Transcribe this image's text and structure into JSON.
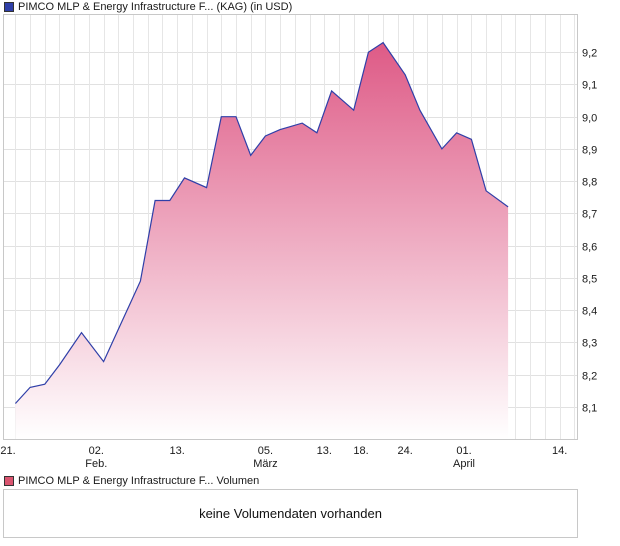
{
  "legend": {
    "price_label": "PIMCO MLP & Energy Infrastructure F... (KAG)  (in USD)",
    "price_color": "#2f3fa8",
    "volume_label": "PIMCO MLP & Energy Infrastructure F... Volumen",
    "volume_color": "#d9546f"
  },
  "volume": {
    "no_data_text": "keine Volumendaten vorhanden"
  },
  "chart_data": {
    "type": "area",
    "title": "PIMCO MLP & Energy Infrastructure F... (KAG)  (in USD)",
    "xlabel": "",
    "ylabel": "",
    "ylim": [
      8.0,
      9.3
    ],
    "y_ticks": [
      "8,1",
      "8,2",
      "8,3",
      "8,4",
      "8,5",
      "8,6",
      "8,7",
      "8,8",
      "8,9",
      "9,0",
      "9,1",
      "9,2"
    ],
    "y_tick_values": [
      8.1,
      8.2,
      8.3,
      8.4,
      8.5,
      8.6,
      8.7,
      8.8,
      8.9,
      9.0,
      9.1,
      9.2
    ],
    "x_ticks": [
      {
        "day": 0,
        "label": "21.",
        "sub": ""
      },
      {
        "day": 12,
        "label": "02.",
        "sub": "Feb."
      },
      {
        "day": 23,
        "label": "13.",
        "sub": ""
      },
      {
        "day": 35,
        "label": "05.",
        "sub": "März"
      },
      {
        "day": 43,
        "label": "13.",
        "sub": ""
      },
      {
        "day": 48,
        "label": "18.",
        "sub": ""
      },
      {
        "day": 54,
        "label": "24.",
        "sub": ""
      },
      {
        "day": 62,
        "label": "01.",
        "sub": "April"
      },
      {
        "day": 75,
        "label": "14.",
        "sub": ""
      }
    ],
    "x_range": [
      0,
      77.5
    ],
    "series": [
      {
        "line_color": "#2f3fa8",
        "fill_top_color": "#de5a86",
        "fill_bottom_color": "#ffffff",
        "points": [
          {
            "day": 1,
            "value": 8.11
          },
          {
            "day": 3,
            "value": 8.16
          },
          {
            "day": 5,
            "value": 8.17
          },
          {
            "day": 7,
            "value": 8.23
          },
          {
            "day": 10,
            "value": 8.33
          },
          {
            "day": 13,
            "value": 8.24
          },
          {
            "day": 15,
            "value": 8.34
          },
          {
            "day": 18,
            "value": 8.49
          },
          {
            "day": 20,
            "value": 8.74
          },
          {
            "day": 22,
            "value": 8.74
          },
          {
            "day": 24,
            "value": 8.81
          },
          {
            "day": 27,
            "value": 8.78
          },
          {
            "day": 29,
            "value": 9.0
          },
          {
            "day": 31,
            "value": 9.0
          },
          {
            "day": 33,
            "value": 8.88
          },
          {
            "day": 35,
            "value": 8.94
          },
          {
            "day": 37,
            "value": 8.96
          },
          {
            "day": 40,
            "value": 8.98
          },
          {
            "day": 42,
            "value": 8.95
          },
          {
            "day": 44,
            "value": 9.08
          },
          {
            "day": 47,
            "value": 9.02
          },
          {
            "day": 49,
            "value": 9.2
          },
          {
            "day": 51,
            "value": 9.23
          },
          {
            "day": 54,
            "value": 9.13
          },
          {
            "day": 56,
            "value": 9.02
          },
          {
            "day": 59,
            "value": 8.9
          },
          {
            "day": 61,
            "value": 8.95
          },
          {
            "day": 63,
            "value": 8.93
          },
          {
            "day": 65,
            "value": 8.77
          },
          {
            "day": 68,
            "value": 8.72
          }
        ]
      }
    ],
    "grid": true,
    "legend_position": "top-left"
  }
}
